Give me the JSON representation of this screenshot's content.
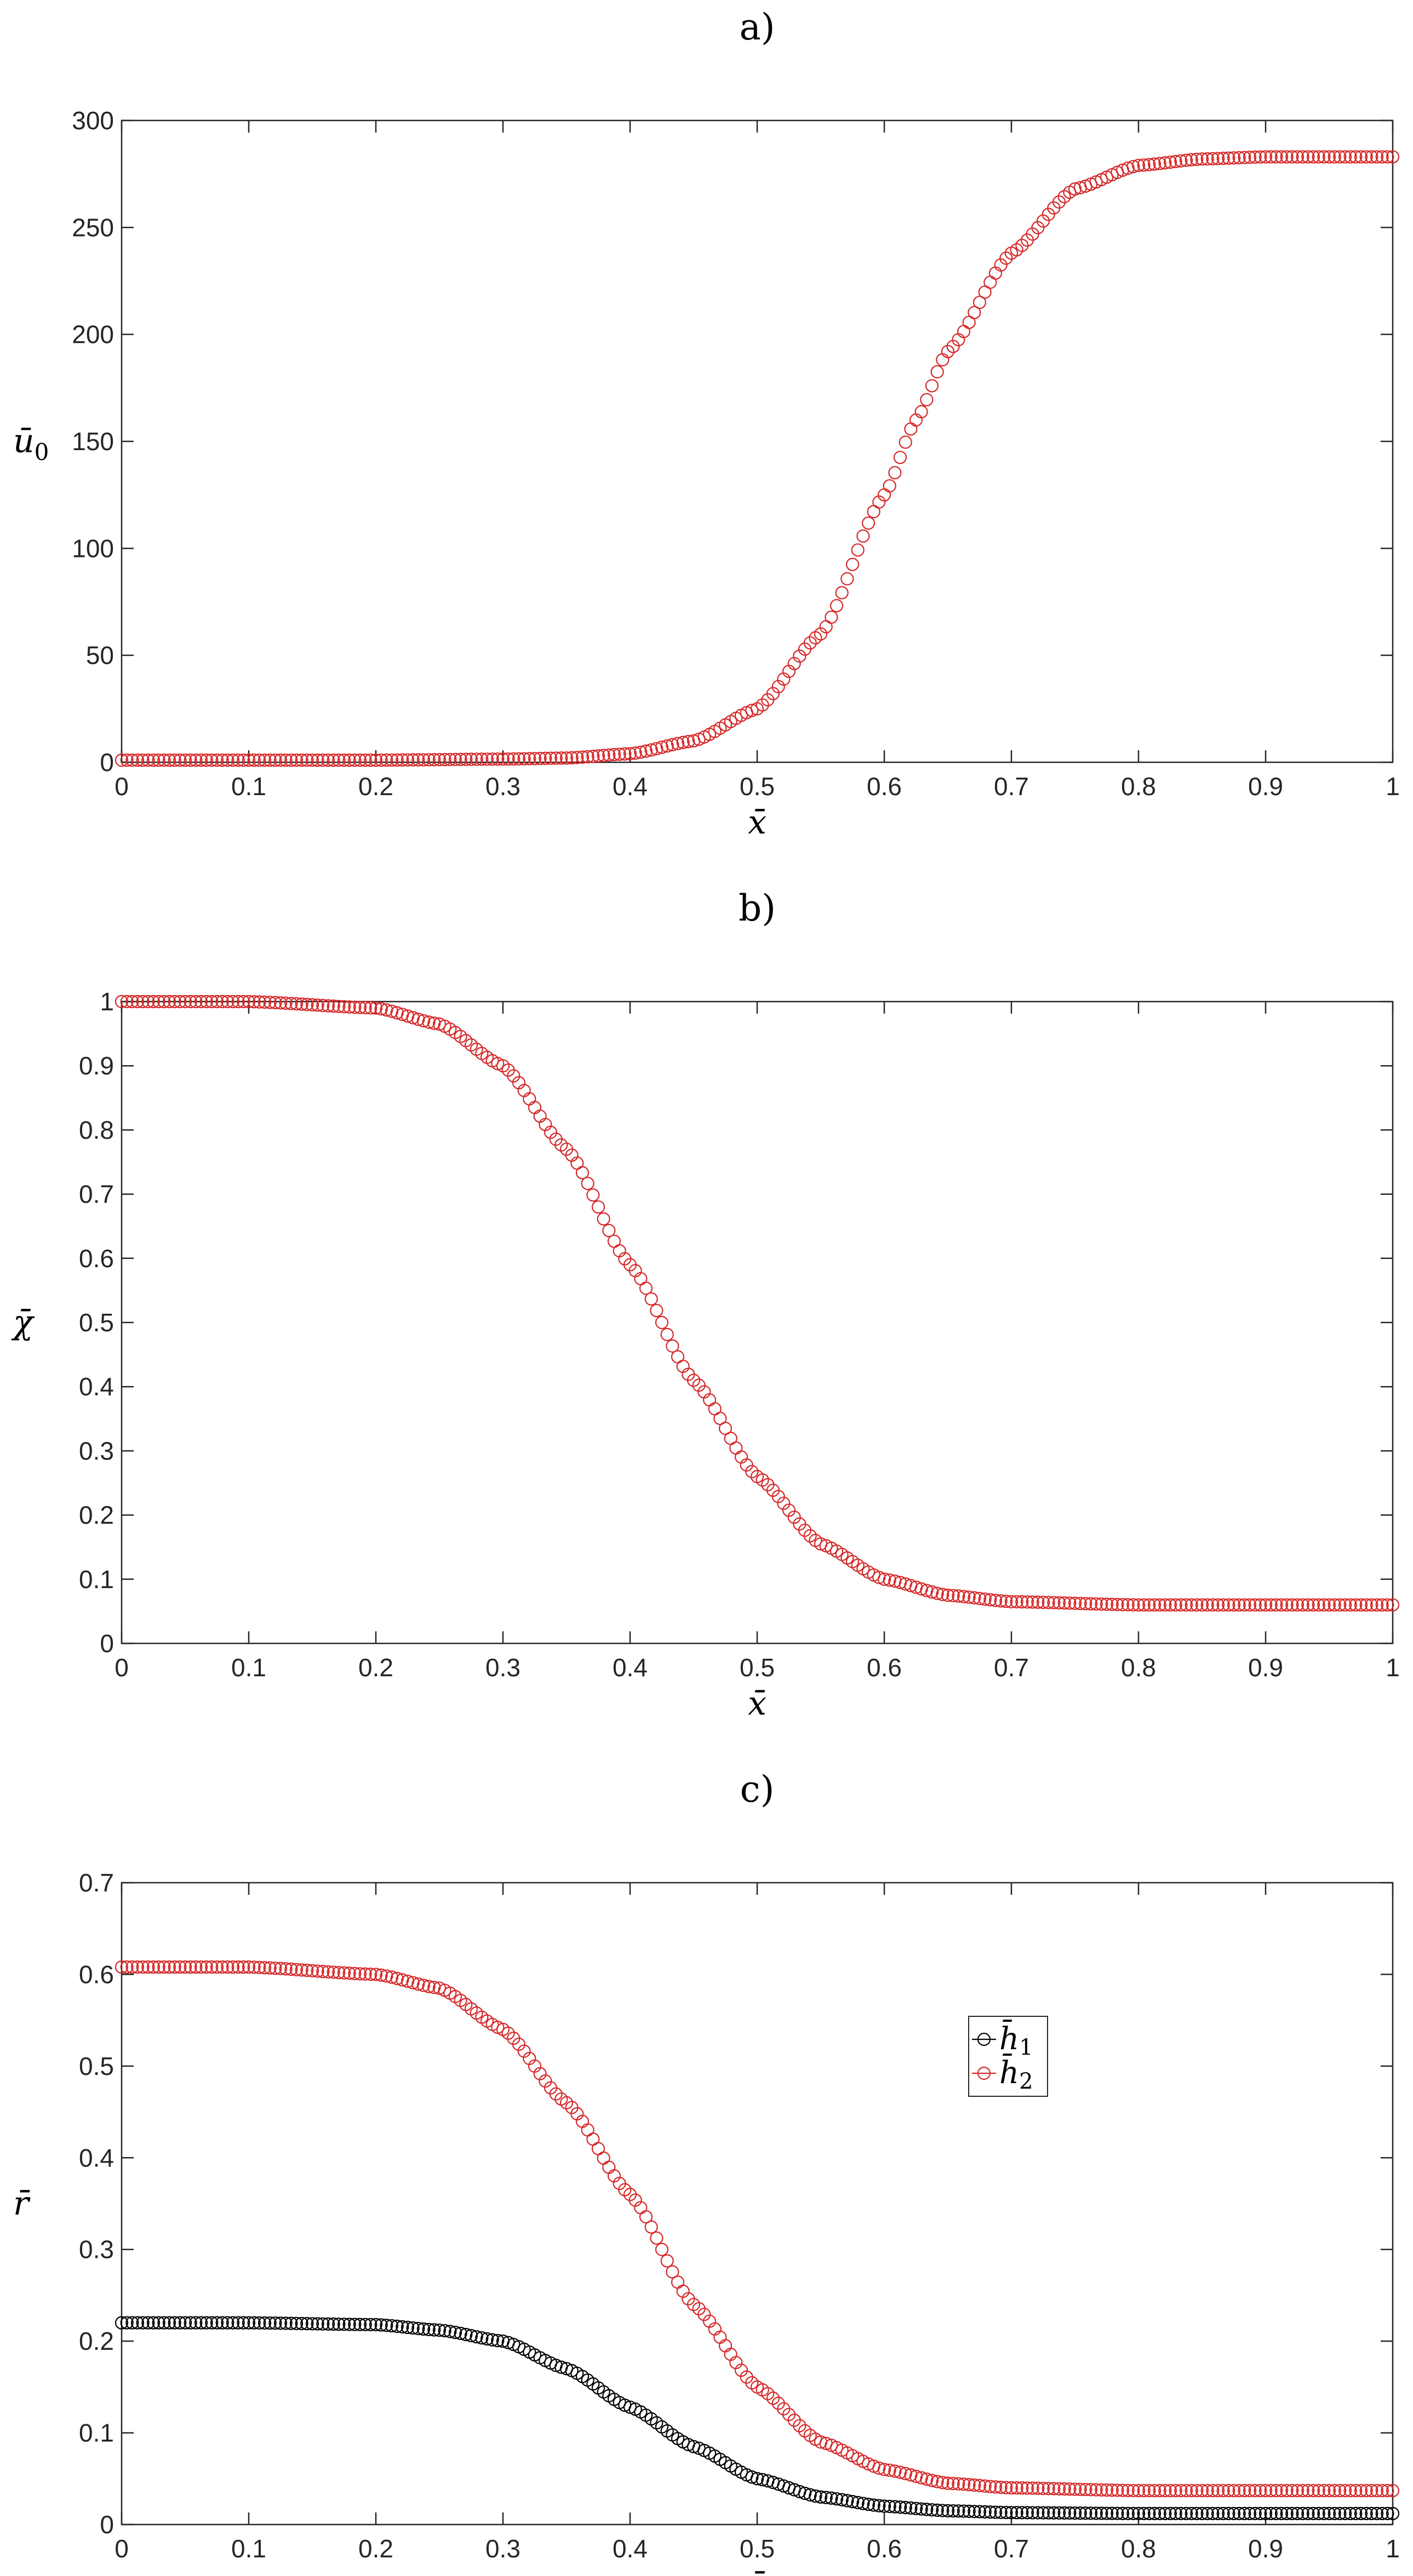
{
  "chart_data": [
    {
      "panel": "a)",
      "type": "scatter",
      "xlabel": "x̄",
      "ylabel": "ū",
      "ylabel_sub": "0",
      "xlim": [
        0,
        1
      ],
      "ylim": [
        0,
        300
      ],
      "xticks": [
        "0",
        "0.1",
        "0.2",
        "0.3",
        "0.4",
        "0.5",
        "0.6",
        "0.7",
        "0.8",
        "0.9",
        "1"
      ],
      "yticks": [
        "0",
        "50",
        "100",
        "150",
        "200",
        "250",
        "300"
      ],
      "marker": "open-circle",
      "grid": false,
      "series": [
        {
          "color": "#d62728",
          "x": [
            0,
            0.1,
            0.2,
            0.3,
            0.35,
            0.4,
            0.45,
            0.5,
            0.55,
            0.6,
            0.625,
            0.65,
            0.7,
            0.75,
            0.8,
            0.85,
            0.9,
            0.95,
            1.0
          ],
          "y": [
            1,
            1,
            1,
            1.5,
            2,
            4,
            10,
            25,
            60,
            125,
            160,
            192,
            238,
            268,
            279,
            282,
            283,
            283,
            283
          ]
        }
      ]
    },
    {
      "panel": "b)",
      "type": "scatter",
      "xlabel": "x̄",
      "ylabel": "χ̄",
      "xlim": [
        0,
        1
      ],
      "ylim": [
        0,
        1
      ],
      "xticks": [
        "0",
        "0.1",
        "0.2",
        "0.3",
        "0.4",
        "0.5",
        "0.6",
        "0.7",
        "0.8",
        "0.9",
        "1"
      ],
      "yticks": [
        "0",
        "0.1",
        "0.2",
        "0.3",
        "0.4",
        "0.5",
        "0.6",
        "0.7",
        "0.8",
        "0.9",
        "1"
      ],
      "marker": "open-circle",
      "grid": false,
      "series": [
        {
          "color": "#d62728",
          "x": [
            0,
            0.1,
            0.2,
            0.25,
            0.3,
            0.35,
            0.4,
            0.45,
            0.5,
            0.55,
            0.6,
            0.65,
            0.7,
            0.8,
            0.9,
            1.0
          ],
          "y": [
            1.0,
            1.0,
            0.99,
            0.965,
            0.9,
            0.77,
            0.59,
            0.41,
            0.26,
            0.155,
            0.1,
            0.075,
            0.065,
            0.06,
            0.06,
            0.06
          ]
        }
      ]
    },
    {
      "panel": "c)",
      "type": "scatter",
      "xlabel": "x̄",
      "ylabel": "r̄",
      "xlim": [
        0,
        1
      ],
      "ylim": [
        0,
        0.7
      ],
      "xticks": [
        "0",
        "0.1",
        "0.2",
        "0.3",
        "0.4",
        "0.5",
        "0.6",
        "0.7",
        "0.8",
        "0.9",
        "1"
      ],
      "yticks": [
        "0",
        "0.1",
        "0.2",
        "0.3",
        "0.4",
        "0.5",
        "0.6",
        "0.7"
      ],
      "marker": "open-circle",
      "grid": false,
      "legend": "upper-right-inside",
      "series": [
        {
          "name": "h̄",
          "name_sub": "1",
          "color": "#000000",
          "x": [
            0,
            0.1,
            0.2,
            0.25,
            0.3,
            0.35,
            0.4,
            0.45,
            0.5,
            0.55,
            0.6,
            0.65,
            0.7,
            0.8,
            0.9,
            1.0
          ],
          "y": [
            0.22,
            0.22,
            0.218,
            0.212,
            0.2,
            0.17,
            0.128,
            0.085,
            0.05,
            0.03,
            0.02,
            0.015,
            0.013,
            0.012,
            0.012,
            0.012
          ]
        },
        {
          "name": "h̄",
          "name_sub": "2",
          "color": "#d62728",
          "x": [
            0,
            0.1,
            0.2,
            0.25,
            0.3,
            0.35,
            0.4,
            0.45,
            0.5,
            0.55,
            0.6,
            0.65,
            0.7,
            0.8,
            0.9,
            1.0
          ],
          "y": [
            0.608,
            0.608,
            0.6,
            0.585,
            0.54,
            0.46,
            0.36,
            0.24,
            0.15,
            0.09,
            0.06,
            0.045,
            0.04,
            0.037,
            0.037,
            0.037
          ]
        }
      ]
    }
  ]
}
